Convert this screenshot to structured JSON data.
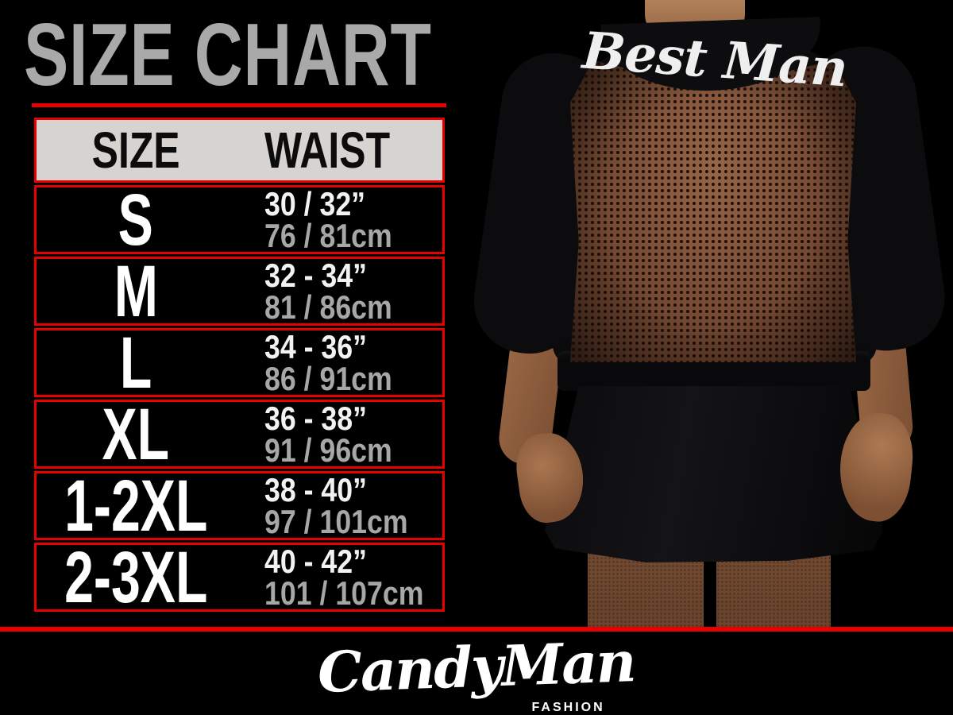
{
  "title": "SIZE CHART",
  "table": {
    "headers": {
      "size": "SIZE",
      "waist": "WAIST"
    },
    "rows": [
      {
        "size": "S",
        "inches": "30 / 32”",
        "cm": "76 / 81cm"
      },
      {
        "size": "M",
        "inches": "32 - 34”",
        "cm": "81 / 86cm"
      },
      {
        "size": "L",
        "inches": "34 - 36”",
        "cm": "86 / 91cm"
      },
      {
        "size": "XL",
        "inches": "36 - 38”",
        "cm": "91 / 96cm"
      },
      {
        "size": "1-2XL",
        "inches": "38 - 40”",
        "cm": "97 / 101cm"
      },
      {
        "size": "2-3XL",
        "inches": "40 - 42”",
        "cm": "101 / 107cm"
      }
    ]
  },
  "photo": {
    "garment_text": "Best Man"
  },
  "brand": {
    "name": "CandyMan",
    "tagline": "FASHION"
  },
  "colors": {
    "background": "#000000",
    "accent_red": "#e60000",
    "title_gray": "#a9a9a9",
    "header_bg": "#d7d3d0",
    "size_text": "#ffffff",
    "cm_text": "#a7a7a7",
    "mesh_brown": "#6f4530",
    "skin": "#9a6845"
  },
  "chart_data": {
    "type": "table",
    "title": "SIZE CHART",
    "columns": [
      "SIZE",
      "WAIST (inches)",
      "WAIST (cm)"
    ],
    "rows": [
      [
        "S",
        "30 / 32\"",
        "76 / 81cm"
      ],
      [
        "M",
        "32 - 34\"",
        "81 / 86cm"
      ],
      [
        "L",
        "34 - 36\"",
        "86 / 91cm"
      ],
      [
        "XL",
        "36 - 38\"",
        "91 / 96cm"
      ],
      [
        "1-2XL",
        "38 - 40\"",
        "97 / 101cm"
      ],
      [
        "2-3XL",
        "40 - 42\"",
        "101 / 107cm"
      ]
    ]
  }
}
